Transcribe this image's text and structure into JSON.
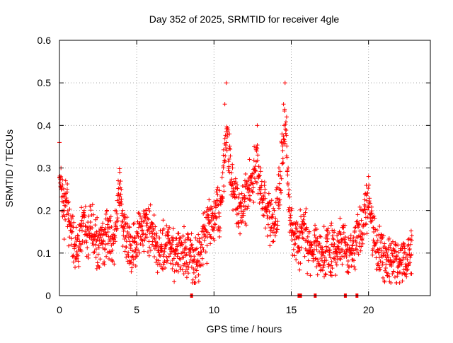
{
  "chart_data": {
    "type": "scatter",
    "title": "Day 352 of 2025, SRMTID for receiver 4gle",
    "xlabel": "GPS time / hours",
    "ylabel": "SRMTID / TECUs",
    "xlim": [
      0,
      24
    ],
    "ylim": [
      0,
      0.6
    ],
    "x_ticks": [
      0,
      5,
      10,
      15,
      20
    ],
    "x_tick_labels": [
      "0",
      "5",
      "10",
      "15",
      "20"
    ],
    "y_ticks": [
      0,
      0.1,
      0.2,
      0.3,
      0.4,
      0.5,
      0.6
    ],
    "y_tick_labels": [
      "0",
      "0.1",
      "0.2",
      "0.3",
      "0.4",
      "0.5",
      "0.6"
    ],
    "grid": true,
    "marker": "+",
    "series_color": "#ff0000",
    "baseline_zero_points_x": [
      8.55,
      15.5,
      15.6,
      16.55,
      18.5,
      19.25
    ],
    "series": [
      {
        "name": "SRMTID",
        "x": [
          0.0,
          0.1,
          0.2,
          0.3,
          0.4,
          0.5,
          0.6,
          0.8,
          1.0,
          1.2,
          1.4,
          1.6,
          1.8,
          2.0,
          2.2,
          2.4,
          2.6,
          2.8,
          3.0,
          3.2,
          3.4,
          3.6,
          3.8,
          3.9,
          4.0,
          4.1,
          4.3,
          4.6,
          5.0,
          5.3,
          5.6,
          6.0,
          6.3,
          6.6,
          7.0,
          7.3,
          7.6,
          8.0,
          8.2,
          8.5,
          8.7,
          9.0,
          9.3,
          9.6,
          10.0,
          10.2,
          10.4,
          10.6,
          10.7,
          10.8,
          11.0,
          11.2,
          11.5,
          11.8,
          12.0,
          12.3,
          12.6,
          12.8,
          13.0,
          13.3,
          13.6,
          13.9,
          14.2,
          14.4,
          14.5,
          14.6,
          14.7,
          14.8,
          15.0,
          15.2,
          15.5,
          15.8,
          16.0,
          16.3,
          16.6,
          17.0,
          17.3,
          17.6,
          18.0,
          18.3,
          18.6,
          19.0,
          19.3,
          19.6,
          19.8,
          20.0,
          20.3,
          20.6,
          21.0,
          21.3,
          21.6,
          22.0,
          22.3,
          22.6,
          22.8
        ],
        "y": [
          0.36,
          0.3,
          0.26,
          0.24,
          0.27,
          0.25,
          0.22,
          0.18,
          0.12,
          0.14,
          0.17,
          0.2,
          0.16,
          0.21,
          0.19,
          0.15,
          0.13,
          0.17,
          0.18,
          0.16,
          0.14,
          0.2,
          0.27,
          0.29,
          0.25,
          0.2,
          0.17,
          0.14,
          0.15,
          0.18,
          0.2,
          0.17,
          0.14,
          0.12,
          0.15,
          0.13,
          0.12,
          0.14,
          0.11,
          0.13,
          0.08,
          0.1,
          0.15,
          0.19,
          0.21,
          0.25,
          0.22,
          0.33,
          0.45,
          0.5,
          0.38,
          0.3,
          0.26,
          0.24,
          0.27,
          0.32,
          0.35,
          0.4,
          0.3,
          0.25,
          0.22,
          0.2,
          0.3,
          0.38,
          0.45,
          0.5,
          0.42,
          0.3,
          0.2,
          0.17,
          0.15,
          0.19,
          0.16,
          0.12,
          0.13,
          0.1,
          0.14,
          0.12,
          0.13,
          0.16,
          0.12,
          0.13,
          0.17,
          0.2,
          0.24,
          0.28,
          0.16,
          0.13,
          0.1,
          0.09,
          0.11,
          0.08,
          0.1,
          0.12,
          0.13
        ]
      }
    ]
  }
}
